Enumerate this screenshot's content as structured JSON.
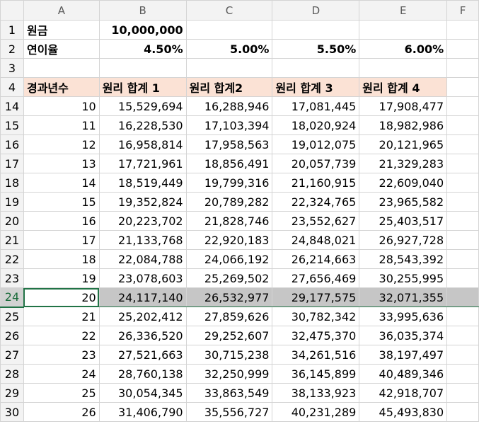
{
  "columns": [
    "A",
    "B",
    "C",
    "D",
    "E",
    "F"
  ],
  "top_rows": [
    {
      "row": "1",
      "cells": [
        {
          "v": "원금",
          "cls": "bold"
        },
        {
          "v": "10,000,000",
          "cls": "bold num"
        },
        {
          "v": ""
        },
        {
          "v": ""
        },
        {
          "v": ""
        },
        {
          "v": ""
        }
      ]
    },
    {
      "row": "2",
      "cells": [
        {
          "v": "연이율",
          "cls": "bold"
        },
        {
          "v": "4.50%",
          "cls": "bold num"
        },
        {
          "v": "5.00%",
          "cls": "bold num"
        },
        {
          "v": "5.50%",
          "cls": "bold num"
        },
        {
          "v": "6.00%",
          "cls": "bold num"
        },
        {
          "v": ""
        }
      ]
    },
    {
      "row": "3",
      "cells": [
        {
          "v": ""
        },
        {
          "v": ""
        },
        {
          "v": ""
        },
        {
          "v": ""
        },
        {
          "v": ""
        },
        {
          "v": ""
        }
      ]
    },
    {
      "row": "4",
      "cells": [
        {
          "v": "경과년수",
          "cls": "hdr"
        },
        {
          "v": "원리 합계 1",
          "cls": "hdr"
        },
        {
          "v": "원리 합계2",
          "cls": "hdr"
        },
        {
          "v": "원리 합계 3",
          "cls": "hdr"
        },
        {
          "v": "원리 합계 4",
          "cls": "hdr"
        },
        {
          "v": ""
        }
      ]
    }
  ],
  "data_rows": [
    {
      "row": "14",
      "year": "10",
      "v": [
        "15,529,694",
        "16,288,946",
        "17,081,445",
        "17,908,477"
      ]
    },
    {
      "row": "15",
      "year": "11",
      "v": [
        "16,228,530",
        "17,103,394",
        "18,020,924",
        "18,982,986"
      ]
    },
    {
      "row": "16",
      "year": "12",
      "v": [
        "16,958,814",
        "17,958,563",
        "19,012,075",
        "20,121,965"
      ]
    },
    {
      "row": "17",
      "year": "13",
      "v": [
        "17,721,961",
        "18,856,491",
        "20,057,739",
        "21,329,283"
      ]
    },
    {
      "row": "18",
      "year": "14",
      "v": [
        "18,519,449",
        "19,799,316",
        "21,160,915",
        "22,609,040"
      ]
    },
    {
      "row": "19",
      "year": "15",
      "v": [
        "19,352,824",
        "20,789,282",
        "22,324,765",
        "23,965,582"
      ]
    },
    {
      "row": "20",
      "year": "16",
      "v": [
        "20,223,702",
        "21,828,746",
        "23,552,627",
        "25,403,517"
      ]
    },
    {
      "row": "21",
      "year": "17",
      "v": [
        "21,133,768",
        "22,920,183",
        "24,848,021",
        "26,927,728"
      ]
    },
    {
      "row": "22",
      "year": "18",
      "v": [
        "22,084,788",
        "24,066,192",
        "26,214,663",
        "28,543,392"
      ]
    },
    {
      "row": "23",
      "year": "19",
      "v": [
        "23,078,603",
        "25,269,502",
        "27,656,469",
        "30,255,995"
      ]
    },
    {
      "row": "24",
      "year": "20",
      "v": [
        "24,117,140",
        "26,532,977",
        "29,177,575",
        "32,071,355"
      ],
      "selected": true
    },
    {
      "row": "25",
      "year": "21",
      "v": [
        "25,202,412",
        "27,859,626",
        "30,782,342",
        "33,995,636"
      ]
    },
    {
      "row": "26",
      "year": "22",
      "v": [
        "26,336,520",
        "29,252,607",
        "32,475,370",
        "36,035,374"
      ]
    },
    {
      "row": "27",
      "year": "23",
      "v": [
        "27,521,663",
        "30,715,238",
        "34,261,516",
        "38,197,497"
      ]
    },
    {
      "row": "28",
      "year": "24",
      "v": [
        "28,760,138",
        "32,250,999",
        "36,145,899",
        "40,489,346"
      ]
    },
    {
      "row": "29",
      "year": "25",
      "v": [
        "30,054,345",
        "33,863,549",
        "38,133,923",
        "42,918,707"
      ]
    },
    {
      "row": "30",
      "year": "26",
      "v": [
        "31,406,790",
        "35,556,727",
        "40,231,289",
        "45,493,830"
      ]
    }
  ]
}
